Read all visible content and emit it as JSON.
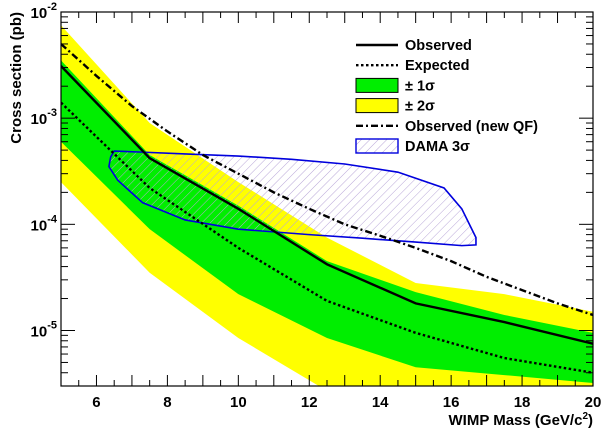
{
  "chart_data": {
    "type": "line",
    "xlabel": "WIMP Mass (GeV/c",
    "xlabel_sup": "2",
    "xlabel_end": ")",
    "ylabel": "Cross section (pb)",
    "xlim": [
      5,
      20
    ],
    "ylim": [
      3e-06,
      0.01
    ],
    "y_scale": "log",
    "x_ticks": [
      6,
      8,
      10,
      12,
      14,
      16,
      18,
      20
    ],
    "y_ticks": [
      {
        "value": 1e-05,
        "mantissa": "10",
        "exp": "-5"
      },
      {
        "value": 0.0001,
        "mantissa": "10",
        "exp": "-4"
      },
      {
        "value": 0.001,
        "mantissa": "10",
        "exp": "-3"
      },
      {
        "value": 0.01,
        "mantissa": "10",
        "exp": "-2"
      }
    ],
    "legend_position": "top-right",
    "series": [
      {
        "name": "± 2σ",
        "kind": "band",
        "color": "#ffff00",
        "x": [
          5,
          7.5,
          10,
          12.5,
          15,
          17.5,
          20
        ],
        "upper": [
          0.0075,
          0.0009,
          0.00025,
          7.5e-05,
          2.8e-05,
          2.2e-05,
          1.5e-05
        ],
        "lower": [
          0.00025,
          3.5e-05,
          8.5e-06,
          2.7e-06,
          2e-06,
          2e-06,
          2e-06
        ]
      },
      {
        "name": "± 1σ",
        "kind": "band",
        "color": "#00ee00",
        "x": [
          5,
          7.5,
          10,
          12.5,
          15,
          17.5,
          20
        ],
        "upper": [
          0.0035,
          0.00045,
          0.00015,
          4.5e-05,
          2.3e-05,
          1.4e-05,
          9.5e-06
        ],
        "lower": [
          0.0006,
          9e-05,
          2.2e-05,
          8.5e-06,
          4.5e-06,
          3.8e-06,
          3.2e-06
        ]
      },
      {
        "name": "Expected",
        "kind": "dotted",
        "color": "#000000",
        "x": [
          5,
          7.5,
          10,
          12.5,
          15,
          17.5,
          20
        ],
        "y": [
          0.0014,
          0.00022,
          6e-05,
          1.9e-05,
          9.5e-06,
          5.5e-06,
          4e-06
        ]
      },
      {
        "name": "Observed",
        "kind": "solid",
        "color": "#000000",
        "x": [
          5,
          7.5,
          10,
          12.5,
          15,
          17.5,
          20
        ],
        "y": [
          0.0031,
          0.00042,
          0.00014,
          4.2e-05,
          1.8e-05,
          1.2e-05,
          7.5e-06
        ]
      },
      {
        "name": "Observed (new QF)",
        "kind": "dashdot",
        "color": "#000000",
        "x": [
          5,
          6,
          7,
          8,
          9,
          10,
          11,
          12,
          13,
          14,
          15,
          16,
          17,
          18,
          19,
          20
        ],
        "y": [
          0.005,
          0.0025,
          0.0013,
          0.00075,
          0.00045,
          0.0003,
          0.0002,
          0.00014,
          0.0001,
          7.8e-05,
          6e-05,
          4.5e-05,
          3.2e-05,
          2.4e-05,
          1.8e-05,
          1.4e-05
        ]
      }
    ],
    "region": {
      "name": "DAMA 3σ",
      "color": "#0000dd",
      "x": [
        6.5,
        7.2,
        8.5,
        10,
        11.5,
        13,
        14.5,
        15.8,
        16.3,
        16.7,
        16.7,
        16.3,
        15,
        13.5,
        12,
        10,
        8.5,
        7.3,
        6.6,
        6.35,
        6.4,
        6.5
      ],
      "y": [
        0.00049,
        0.00048,
        0.00046,
        0.00044,
        0.00041,
        0.00037,
        0.00031,
        0.00022,
        0.00014,
        7.5e-05,
        6.4e-05,
        6.3e-05,
        6.8e-05,
        7.4e-05,
        8e-05,
        9e-05,
        0.00011,
        0.00016,
        0.00026,
        0.00035,
        0.00043,
        0.00049
      ]
    }
  }
}
